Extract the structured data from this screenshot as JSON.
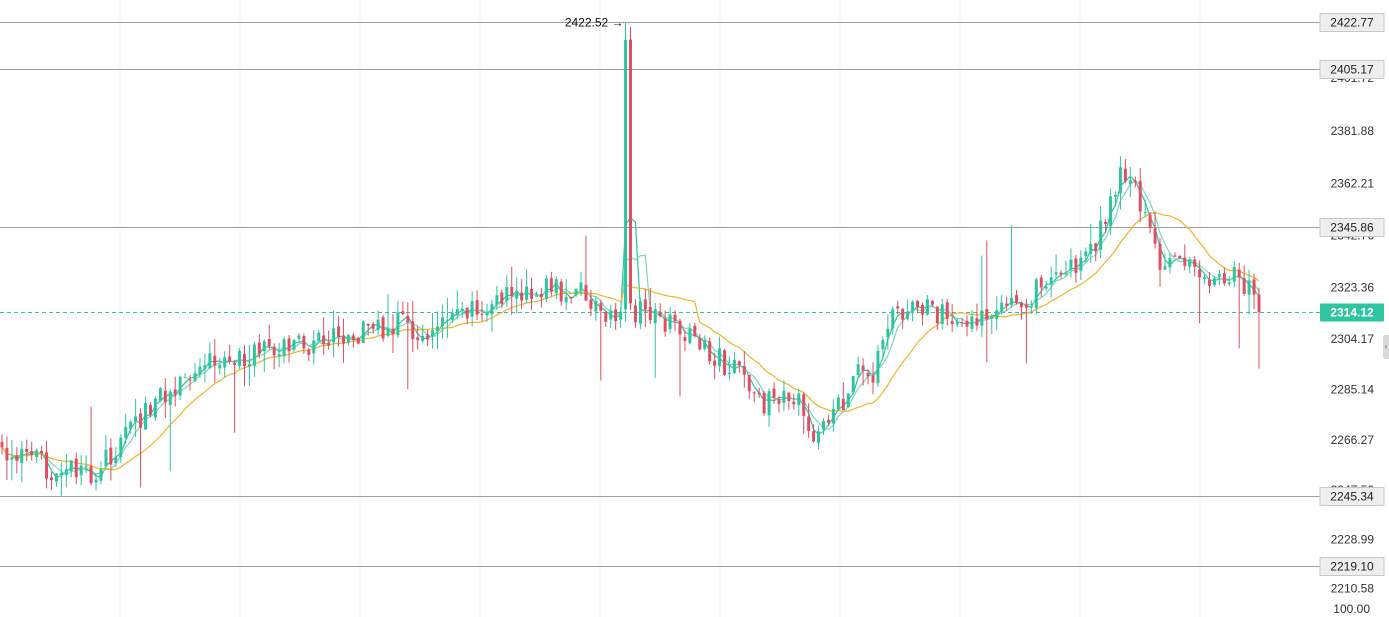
{
  "chart_data": {
    "type": "candlestick",
    "y_range": [
      2200,
      2431
    ],
    "y_ticks": [
      "2401.72",
      "2381.88",
      "2362.21",
      "2342.76",
      "2323.36",
      "2304.17",
      "2285.14",
      "2266.27",
      "2247.50",
      "2228.99",
      "2210.58"
    ],
    "bottom_value": "100.00",
    "price_levels": [
      {
        "value": 2422.77,
        "label": "2422.77"
      },
      {
        "value": 2405.17,
        "label": "2405.17"
      },
      {
        "value": 2345.86,
        "label": "2345.86"
      },
      {
        "value": 2245.34,
        "label": "2245.34"
      },
      {
        "value": 2219.1,
        "label": "2219.10"
      }
    ],
    "last_price": {
      "value": 2314.12,
      "label": "2314.12"
    },
    "peak_marker": {
      "value": 2422.52,
      "label": "2422.52 →"
    },
    "candle_count": 255,
    "close_keyframes": [
      [
        0,
        2262
      ],
      [
        10,
        2256
      ],
      [
        18,
        2252
      ],
      [
        24,
        2265
      ],
      [
        30,
        2280
      ],
      [
        36,
        2288
      ],
      [
        40,
        2298
      ],
      [
        44,
        2296
      ],
      [
        50,
        2298
      ],
      [
        60,
        2302
      ],
      [
        70,
        2306
      ],
      [
        80,
        2310
      ],
      [
        86,
        2304
      ],
      [
        92,
        2312
      ],
      [
        100,
        2318
      ],
      [
        108,
        2324
      ],
      [
        118,
        2320
      ],
      [
        124,
        2310
      ],
      [
        130,
        2316
      ],
      [
        136,
        2308
      ],
      [
        142,
        2302
      ],
      [
        148,
        2292
      ],
      [
        154,
        2280
      ],
      [
        160,
        2282
      ],
      [
        164,
        2270
      ],
      [
        168,
        2274
      ],
      [
        172,
        2290
      ],
      [
        176,
        2290
      ],
      [
        178,
        2308
      ],
      [
        184,
        2316
      ],
      [
        190,
        2313
      ],
      [
        196,
        2309
      ],
      [
        202,
        2320
      ],
      [
        208,
        2320
      ],
      [
        212,
        2330
      ],
      [
        218,
        2330
      ],
      [
        222,
        2344
      ],
      [
        226,
        2368
      ],
      [
        230,
        2355
      ],
      [
        234,
        2334
      ],
      [
        240,
        2330
      ],
      [
        244,
        2328
      ],
      [
        248,
        2330
      ],
      [
        252,
        2322
      ],
      [
        254,
        2314.12
      ]
    ],
    "volatility": 2.2,
    "moving_averages": [
      {
        "period": 3,
        "color": "#2ec4a0"
      },
      {
        "period": 5,
        "color": "#7ed6be"
      },
      {
        "period": 15,
        "color": "#f0b429"
      }
    ],
    "colors": {
      "up": "#2ec4a0",
      "down": "#e04e5f",
      "level_line": "#9e9e9e",
      "last_line": "#2ec4a0",
      "label_bg": "#eeeeee",
      "last_bg": "#2ec4a0",
      "grid": "#f4f4f4"
    }
  }
}
